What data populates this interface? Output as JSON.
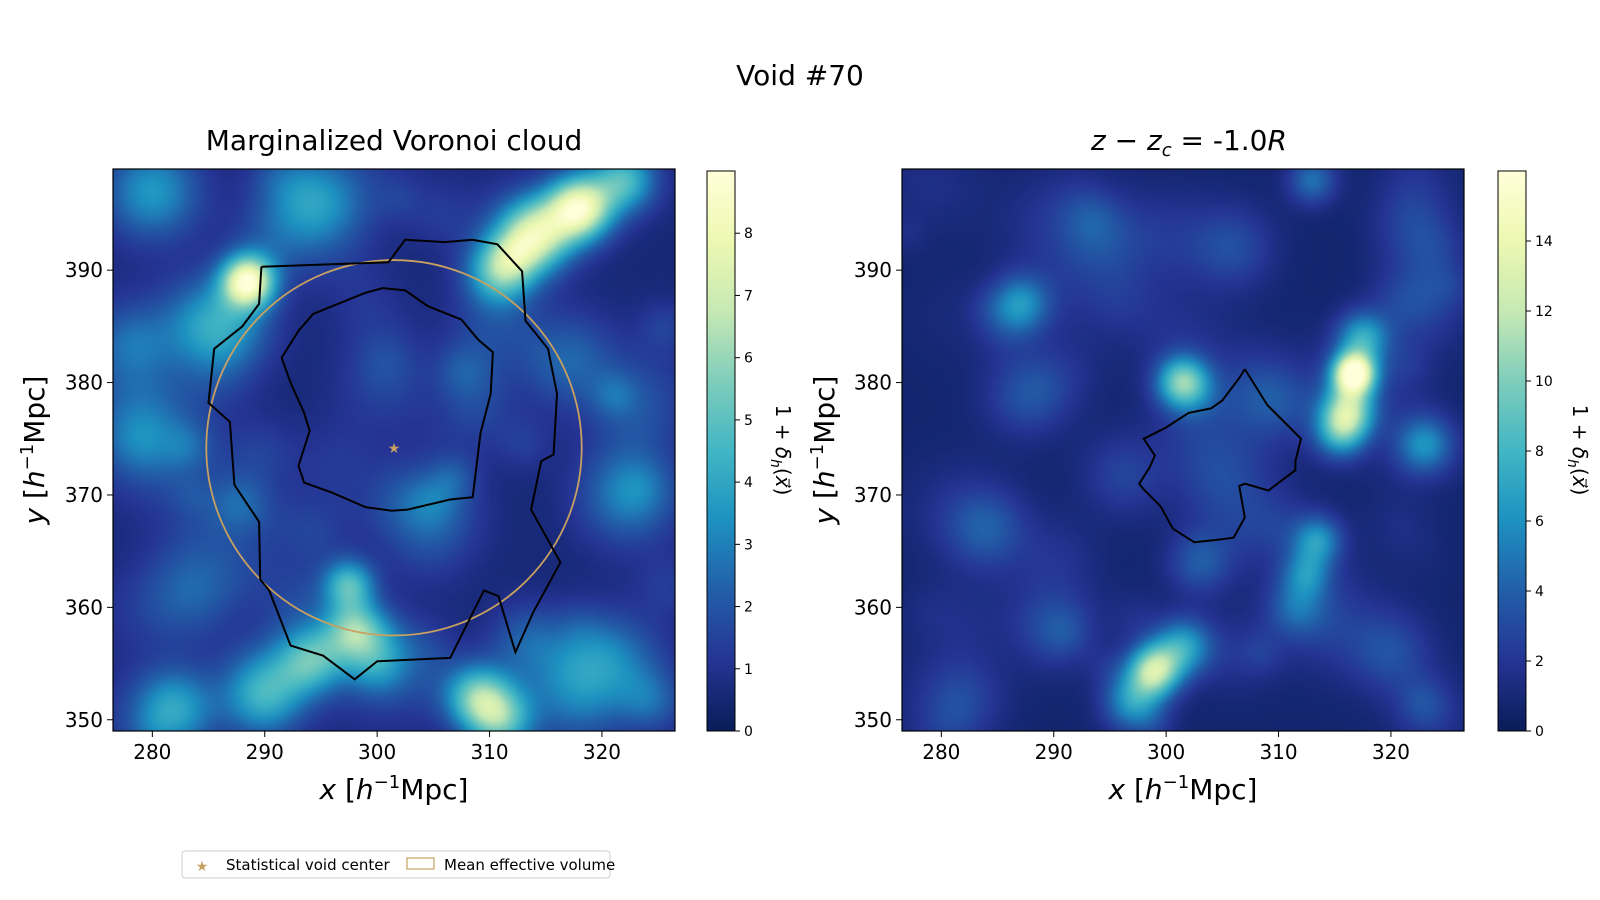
{
  "figure_title": "Void #70",
  "colors": {
    "colormap": [
      "#081d58",
      "#253494",
      "#225ea8",
      "#1d91c0",
      "#41b6c4",
      "#7fcdbb",
      "#c7e9b4",
      "#edf8b1",
      "#ffffd9"
    ],
    "contour": "#000000",
    "circle": "#c8a060",
    "star": "#c8a060"
  },
  "chart_data": [
    {
      "type": "heatmap",
      "title": "Marginalized Voronoi cloud",
      "xlabel": "x [h⁻¹Mpc]",
      "ylabel": "y [h⁻¹Mpc]",
      "xlim": [
        276.5,
        326.5
      ],
      "ylim": [
        349,
        399
      ],
      "xticks": [
        280,
        290,
        300,
        310,
        320
      ],
      "yticks": [
        350,
        360,
        370,
        380,
        390
      ],
      "colorbar": {
        "label": "1 + δh(x⃗)",
        "range": [
          0,
          9
        ],
        "ticks": [
          0,
          1,
          2,
          3,
          4,
          5,
          6,
          7,
          8
        ]
      },
      "density_blobs": [
        {
          "x": 288.5,
          "y": 389,
          "s": 1.6,
          "a": 7.5
        },
        {
          "x": 286,
          "y": 385,
          "s": 3.0,
          "a": 3.5
        },
        {
          "x": 318,
          "y": 395.5,
          "s": 2.0,
          "a": 7.5
        },
        {
          "x": 314,
          "y": 393,
          "s": 2.2,
          "a": 6.0
        },
        {
          "x": 311,
          "y": 390,
          "s": 2.0,
          "a": 4.5
        },
        {
          "x": 322,
          "y": 398,
          "s": 2.0,
          "a": 4.0
        },
        {
          "x": 280,
          "y": 397,
          "s": 3.0,
          "a": 3.0
        },
        {
          "x": 297.5,
          "y": 362,
          "s": 1.6,
          "a": 4.0
        },
        {
          "x": 298,
          "y": 358,
          "s": 1.8,
          "a": 4.0
        },
        {
          "x": 300,
          "y": 355,
          "s": 2.0,
          "a": 2.5
        },
        {
          "x": 309,
          "y": 352,
          "s": 2.0,
          "a": 4.5
        },
        {
          "x": 311,
          "y": 350,
          "s": 2.0,
          "a": 4.0
        },
        {
          "x": 290,
          "y": 352,
          "s": 2.5,
          "a": 3.0
        },
        {
          "x": 282,
          "y": 351,
          "s": 2.5,
          "a": 3.0
        },
        {
          "x": 294,
          "y": 355,
          "s": 2.0,
          "a": 2.5
        },
        {
          "x": 280,
          "y": 375,
          "s": 3.5,
          "a": 2.0
        },
        {
          "x": 322,
          "y": 370,
          "s": 3.0,
          "a": 1.5
        },
        {
          "x": 295,
          "y": 396,
          "s": 3.0,
          "a": 1.8
        },
        {
          "x": 284,
          "y": 362,
          "s": 3.0,
          "a": 1.5
        },
        {
          "x": 317,
          "y": 382,
          "s": 3.0,
          "a": 1.8
        },
        {
          "x": 305,
          "y": 368,
          "s": 3.0,
          "a": 1.5
        },
        {
          "x": 322,
          "y": 355,
          "s": 3.0,
          "a": 1.5
        }
      ],
      "outer_contour": [
        [
          289.7,
          390.3
        ],
        [
          301,
          390.7
        ],
        [
          302.5,
          392.7
        ],
        [
          306,
          392.5
        ],
        [
          308.5,
          392.7
        ],
        [
          310.7,
          392.3
        ],
        [
          312.9,
          389.9
        ],
        [
          313.2,
          385.5
        ],
        [
          315.2,
          383
        ],
        [
          316,
          379
        ],
        [
          315.7,
          373.6
        ],
        [
          314.6,
          373
        ],
        [
          313.7,
          368.7
        ],
        [
          316.3,
          364
        ],
        [
          313.9,
          359.6
        ],
        [
          312.3,
          356
        ],
        [
          310.8,
          361
        ],
        [
          309.5,
          361.5
        ],
        [
          306.5,
          355.5
        ],
        [
          300,
          355.2
        ],
        [
          298,
          353.6
        ],
        [
          295.2,
          355.7
        ],
        [
          292.3,
          356.6
        ],
        [
          290.4,
          361.5
        ],
        [
          289.6,
          362.5
        ],
        [
          289.5,
          367.6
        ],
        [
          287.3,
          370.9
        ],
        [
          286.9,
          376.5
        ],
        [
          285,
          378.2
        ],
        [
          285.5,
          383
        ],
        [
          288,
          385
        ],
        [
          289.5,
          387
        ]
      ],
      "inner_contour": [
        [
          299,
          388
        ],
        [
          300.5,
          388.4
        ],
        [
          302.5,
          388.2
        ],
        [
          304.5,
          386.8
        ],
        [
          307.5,
          385.6
        ],
        [
          309,
          383.8
        ],
        [
          310.3,
          382.7
        ],
        [
          310.1,
          379
        ],
        [
          309.2,
          375.5
        ],
        [
          308.5,
          369.8
        ],
        [
          306.5,
          369.6
        ],
        [
          302.7,
          368.7
        ],
        [
          301.3,
          368.6
        ],
        [
          299,
          368.9
        ],
        [
          296,
          370.2
        ],
        [
          293.5,
          371.1
        ],
        [
          293,
          372.6
        ],
        [
          294,
          375.7
        ],
        [
          293.5,
          377.3
        ],
        [
          292.3,
          380
        ],
        [
          291.5,
          382.2
        ],
        [
          293,
          384.6
        ],
        [
          294.3,
          386.1
        ]
      ],
      "void_center": {
        "x": 301.5,
        "y": 374.2
      },
      "mean_effective_radius": 16.7,
      "legend": {
        "star_label": "Statistical void center",
        "circle_label": "Mean effective volume"
      }
    },
    {
      "type": "heatmap",
      "title": "z − z_c = -1.0R",
      "xlabel": "x [h⁻¹Mpc]",
      "ylabel": "y [h⁻¹Mpc]",
      "xlim": [
        276.5,
        326.5
      ],
      "ylim": [
        349,
        399
      ],
      "xticks": [
        280,
        290,
        300,
        310,
        320
      ],
      "yticks": [
        350,
        360,
        370,
        380,
        390
      ],
      "colorbar": {
        "label": "1 + δh(x⃗)",
        "range": [
          0,
          16
        ],
        "ticks": [
          0,
          2,
          4,
          6,
          8,
          10,
          12,
          14
        ]
      },
      "density_blobs": [
        {
          "x": 316.7,
          "y": 380.8,
          "s": 1.3,
          "a": 15.5
        },
        {
          "x": 316.2,
          "y": 377.5,
          "s": 1.6,
          "a": 9.0
        },
        {
          "x": 317.5,
          "y": 384,
          "s": 1.6,
          "a": 6.0
        },
        {
          "x": 315.5,
          "y": 375.5,
          "s": 1.6,
          "a": 6.0
        },
        {
          "x": 301.5,
          "y": 380,
          "s": 1.6,
          "a": 9.0
        },
        {
          "x": 299,
          "y": 354.5,
          "s": 1.6,
          "a": 9.5
        },
        {
          "x": 301.5,
          "y": 356.5,
          "s": 1.8,
          "a": 6.0
        },
        {
          "x": 297,
          "y": 351.5,
          "s": 1.8,
          "a": 5.0
        },
        {
          "x": 313.5,
          "y": 366,
          "s": 1.5,
          "a": 5.0
        },
        {
          "x": 312.5,
          "y": 363,
          "s": 1.5,
          "a": 4.0
        },
        {
          "x": 323,
          "y": 374.5,
          "s": 1.8,
          "a": 5.0
        },
        {
          "x": 287,
          "y": 387,
          "s": 1.8,
          "a": 5.0
        },
        {
          "x": 311.5,
          "y": 360,
          "s": 1.8,
          "a": 3.0
        },
        {
          "x": 313,
          "y": 398,
          "s": 1.5,
          "a": 4.0
        },
        {
          "x": 303,
          "y": 364,
          "s": 2.0,
          "a": 3.0
        },
        {
          "x": 284,
          "y": 367,
          "s": 2.5,
          "a": 3.0
        },
        {
          "x": 288,
          "y": 379,
          "s": 2.5,
          "a": 2.5
        },
        {
          "x": 320,
          "y": 356,
          "s": 2.5,
          "a": 2.5
        },
        {
          "x": 294,
          "y": 393,
          "s": 2.5,
          "a": 2.0
        },
        {
          "x": 306,
          "y": 392,
          "s": 2.5,
          "a": 2.0
        },
        {
          "x": 322,
          "y": 394,
          "s": 2.5,
          "a": 2.0
        },
        {
          "x": 282,
          "y": 352,
          "s": 2.5,
          "a": 2.0
        },
        {
          "x": 296,
          "y": 372,
          "s": 2.5,
          "a": 1.8
        },
        {
          "x": 290,
          "y": 358,
          "s": 2.5,
          "a": 2.0
        }
      ],
      "contour": [
        [
          307,
          381.2
        ],
        [
          309,
          378
        ],
        [
          311,
          376
        ],
        [
          312,
          375
        ],
        [
          311.5,
          373
        ],
        [
          311.5,
          372.2
        ],
        [
          309.1,
          370.4
        ],
        [
          307,
          371
        ],
        [
          306.5,
          370.8
        ],
        [
          307,
          368
        ],
        [
          306,
          366.2
        ],
        [
          304.5,
          366
        ],
        [
          302.5,
          365.8
        ],
        [
          300.6,
          367
        ],
        [
          299.5,
          369
        ],
        [
          298,
          370.5
        ],
        [
          297.6,
          371
        ],
        [
          298.5,
          372.4
        ],
        [
          299,
          373.5
        ],
        [
          298,
          375
        ],
        [
          300,
          376
        ],
        [
          302,
          377.3
        ],
        [
          304,
          377.7
        ],
        [
          305,
          378.4
        ],
        [
          306.5,
          380.4
        ]
      ]
    }
  ]
}
